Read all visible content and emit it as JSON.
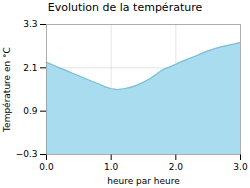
{
  "chart_data": {
    "type": "area",
    "title": "Evolution de la température",
    "xlabel": "heure par heure",
    "ylabel": "Température en °C",
    "x": [
      0,
      0.1,
      0.2,
      0.3,
      0.4,
      0.5,
      0.6,
      0.7,
      0.8,
      0.9,
      1.0,
      1.1,
      1.2,
      1.3,
      1.4,
      1.5,
      1.6,
      1.7,
      1.8,
      1.9,
      2.0,
      2.1,
      2.2,
      2.3,
      2.4,
      2.5,
      2.6,
      2.7,
      2.8,
      2.9,
      3.0
    ],
    "series": [
      {
        "type": "area",
        "color": "#aadcf0",
        "values": [
          2.25,
          2.18,
          2.1,
          2.03,
          1.95,
          1.88,
          1.8,
          1.73,
          1.66,
          1.58,
          1.52,
          1.5,
          1.52,
          1.56,
          1.62,
          1.7,
          1.8,
          1.92,
          2.05,
          2.12,
          2.2,
          2.28,
          2.35,
          2.42,
          2.5,
          2.57,
          2.63,
          2.68,
          2.72,
          2.76,
          2.8
        ]
      },
      {
        "type": "line",
        "color": "#7bbfd4",
        "values": [
          2.25,
          2.18,
          2.1,
          2.03,
          1.95,
          1.88,
          1.8,
          1.73,
          1.66,
          1.58,
          1.52,
          1.5,
          1.52,
          1.56,
          1.62,
          1.7,
          1.8,
          1.92,
          2.05,
          2.12,
          2.2,
          2.28,
          2.35,
          2.42,
          2.5,
          2.57,
          2.63,
          2.68,
          2.72,
          2.76,
          2.8
        ]
      }
    ],
    "xlim": [
      0,
      3
    ],
    "ylim": [
      -0.3,
      3.3
    ],
    "xticks": [
      0,
      1,
      2,
      3
    ],
    "yticks": [
      -0.3,
      0.9,
      2.1,
      3.3
    ],
    "grid": true
  }
}
